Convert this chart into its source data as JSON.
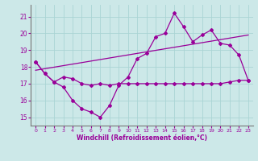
{
  "xlabel": "Windchill (Refroidissement éolien,°C)",
  "background_color": "#cce8e8",
  "line_color": "#990099",
  "grid_color": "#aad4d4",
  "xlim": [
    -0.5,
    23.5
  ],
  "ylim": [
    14.5,
    21.7
  ],
  "yticks": [
    15,
    16,
    17,
    18,
    19,
    20,
    21
  ],
  "xticks": [
    0,
    1,
    2,
    3,
    4,
    5,
    6,
    7,
    8,
    9,
    10,
    11,
    12,
    13,
    14,
    15,
    16,
    17,
    18,
    19,
    20,
    21,
    22,
    23
  ],
  "series1_x": [
    0,
    1,
    2,
    3,
    4,
    5,
    6,
    7,
    8,
    9,
    10,
    11,
    12,
    13,
    14,
    15,
    16,
    17,
    18,
    19,
    20,
    21,
    22,
    23
  ],
  "series1_y": [
    18.3,
    17.6,
    17.1,
    16.8,
    16.0,
    15.5,
    15.3,
    15.0,
    15.7,
    16.9,
    17.4,
    18.5,
    18.8,
    19.8,
    20.0,
    21.2,
    20.4,
    19.5,
    19.9,
    20.2,
    19.4,
    19.3,
    18.7,
    17.2
  ],
  "series2_x": [
    0,
    1,
    2,
    3,
    4,
    5,
    6,
    7,
    8,
    9,
    10,
    11,
    12,
    13,
    14,
    15,
    16,
    17,
    18,
    19,
    20,
    21,
    22,
    23
  ],
  "series2_y": [
    18.3,
    17.6,
    17.1,
    17.4,
    17.3,
    17.0,
    16.9,
    17.0,
    16.9,
    17.0,
    17.0,
    17.0,
    17.0,
    17.0,
    17.0,
    17.0,
    17.0,
    17.0,
    17.0,
    17.0,
    17.0,
    17.1,
    17.2,
    17.2
  ],
  "series3_x": [
    0,
    23
  ],
  "series3_y": [
    17.8,
    19.9
  ]
}
